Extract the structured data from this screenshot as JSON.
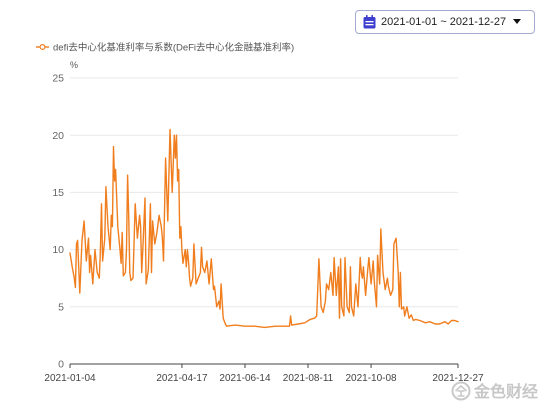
{
  "date_range": {
    "value": "2021-01-01 ~ 2021-12-27",
    "icon": "calendar-icon",
    "dropdown_icon": "caret-down-icon"
  },
  "watermark": {
    "text": "金色财经"
  },
  "colors": {
    "calendar_icon": "#3f3fcf",
    "picker_border": "#a4abd0"
  },
  "chart_data": {
    "type": "line",
    "ylabel": "%",
    "ylim": [
      0,
      25
    ],
    "y_ticks": [
      0,
      5,
      10,
      15,
      20,
      25
    ],
    "xlim": [
      "2021-01-04",
      "2021-12-27"
    ],
    "x_ticks": [
      "2021-01-04",
      "2021-04-17",
      "2021-06-14",
      "2021-08-11",
      "2021-10-08",
      "2021-12-27"
    ],
    "grid": true,
    "legend_position": "top-left",
    "x": [
      "2021-01-04",
      "2021-01-06",
      "2021-01-08",
      "2021-01-09",
      "2021-01-10",
      "2021-01-11",
      "2021-01-13",
      "2021-01-15",
      "2021-01-17",
      "2021-01-19",
      "2021-01-21",
      "2021-01-22",
      "2021-01-23",
      "2021-01-25",
      "2021-01-27",
      "2021-01-29",
      "2021-01-31",
      "2021-02-01",
      "2021-02-02",
      "2021-02-03",
      "2021-02-05",
      "2021-02-06",
      "2021-02-08",
      "2021-02-10",
      "2021-02-11",
      "2021-02-12",
      "2021-02-13",
      "2021-02-14",
      "2021-02-15",
      "2021-02-17",
      "2021-02-19",
      "2021-02-20",
      "2021-02-21",
      "2021-02-22",
      "2021-02-24",
      "2021-02-25",
      "2021-02-26",
      "2021-02-27",
      "2021-02-28",
      "2021-03-01",
      "2021-03-03",
      "2021-03-05",
      "2021-03-07",
      "2021-03-09",
      "2021-03-10",
      "2021-03-11",
      "2021-03-12",
      "2021-03-14",
      "2021-03-15",
      "2021-03-17",
      "2021-03-19",
      "2021-03-20",
      "2021-03-21",
      "2021-03-23",
      "2021-03-25",
      "2021-03-27",
      "2021-03-29",
      "2021-03-30",
      "2021-03-31",
      "2021-04-02",
      "2021-04-04",
      "2021-04-06",
      "2021-04-08",
      "2021-04-10",
      "2021-04-11",
      "2021-04-12",
      "2021-04-13",
      "2021-04-14",
      "2021-04-15",
      "2021-04-16",
      "2021-04-17",
      "2021-04-18",
      "2021-04-20",
      "2021-04-21",
      "2021-04-22",
      "2021-04-23",
      "2021-04-24",
      "2021-04-25",
      "2021-04-27",
      "2021-04-28",
      "2021-04-30",
      "2021-05-02",
      "2021-05-04",
      "2021-05-05",
      "2021-05-06",
      "2021-05-08",
      "2021-05-10",
      "2021-05-12",
      "2021-05-14",
      "2021-05-16",
      "2021-05-17",
      "2021-05-19",
      "2021-05-21",
      "2021-05-22",
      "2021-05-23",
      "2021-05-25",
      "2021-05-27",
      "2021-05-28",
      "2021-06-05",
      "2021-06-14",
      "2021-06-23",
      "2021-07-02",
      "2021-07-12",
      "2021-07-21",
      "2021-07-25",
      "2021-07-26",
      "2021-07-27",
      "2021-08-02",
      "2021-08-08",
      "2021-08-13",
      "2021-08-17",
      "2021-08-19",
      "2021-08-21",
      "2021-08-23",
      "2021-08-25",
      "2021-08-27",
      "2021-08-28",
      "2021-08-30",
      "2021-09-01",
      "2021-09-03",
      "2021-09-04",
      "2021-09-06",
      "2021-09-08",
      "2021-09-09",
      "2021-09-10",
      "2021-09-11",
      "2021-09-13",
      "2021-09-14",
      "2021-09-16",
      "2021-09-18",
      "2021-09-19",
      "2021-09-20",
      "2021-09-22",
      "2021-09-24",
      "2021-09-26",
      "2021-09-28",
      "2021-09-29",
      "2021-09-30",
      "2021-10-01",
      "2021-10-03",
      "2021-10-05",
      "2021-10-06",
      "2021-10-08",
      "2021-10-10",
      "2021-10-11",
      "2021-10-13",
      "2021-10-14",
      "2021-10-16",
      "2021-10-17",
      "2021-10-19",
      "2021-10-21",
      "2021-10-23",
      "2021-10-24",
      "2021-10-26",
      "2021-10-28",
      "2021-10-29",
      "2021-10-31",
      "2021-11-02",
      "2021-11-03",
      "2021-11-04",
      "2021-11-05",
      "2021-11-07",
      "2021-11-08",
      "2021-11-10",
      "2021-11-12",
      "2021-11-14",
      "2021-11-16",
      "2021-11-18",
      "2021-11-22",
      "2021-11-27",
      "2021-12-01",
      "2021-12-06",
      "2021-12-10",
      "2021-12-15",
      "2021-12-18",
      "2021-12-21",
      "2021-12-24",
      "2021-12-27"
    ],
    "series": [
      {
        "name": "defi去中心化基准利率与系数(DeFi去中心化金融基准利率)",
        "color": "#f07e1e",
        "values": [
          9.7,
          8.5,
          7.5,
          6.7,
          10.5,
          10.8,
          6.2,
          10.8,
          12.5,
          9.0,
          11.0,
          8.0,
          9.5,
          7.0,
          10.0,
          8.0,
          7.5,
          10.0,
          14.0,
          9.0,
          11.0,
          15.5,
          12.0,
          10.0,
          13.0,
          12.0,
          19.0,
          16.0,
          17.0,
          12.0,
          10.0,
          8.8,
          11.5,
          7.7,
          8.0,
          10.0,
          16.5,
          13.0,
          8.0,
          7.3,
          7.5,
          14.0,
          11.0,
          13.0,
          12.0,
          8.0,
          10.0,
          14.5,
          7.0,
          8.2,
          14.0,
          8.0,
          12.5,
          10.5,
          11.5,
          13.0,
          12.0,
          11.0,
          9.0,
          18.0,
          12.5,
          20.5,
          15.0,
          20.0,
          18.0,
          20.0,
          16.0,
          17.0,
          11.0,
          12.0,
          10.0,
          8.8,
          10.0,
          8.5,
          10.0,
          9.0,
          7.5,
          6.8,
          7.5,
          10.5,
          7.0,
          7.5,
          8.0,
          10.2,
          8.5,
          8.0,
          9.0,
          7.0,
          9.2,
          6.5,
          6.8,
          5.0,
          5.5,
          4.8,
          7.0,
          4.0,
          3.5,
          3.3,
          3.4,
          3.3,
          3.3,
          3.2,
          3.3,
          3.3,
          3.3,
          4.2,
          3.4,
          3.5,
          3.6,
          3.9,
          4.0,
          4.2,
          9.2,
          5.0,
          4.5,
          5.5,
          7.0,
          6.5,
          8.0,
          6.0,
          9.3,
          6.0,
          8.5,
          4.0,
          9.2,
          5.0,
          4.2,
          9.3,
          5.0,
          4.5,
          8.5,
          5.0,
          4.2,
          7.0,
          5.0,
          9.3,
          8.0,
          7.5,
          8.5,
          6.0,
          8.3,
          9.3,
          7.0,
          9.0,
          7.2,
          5.0,
          9.5,
          7.0,
          11.8,
          8.0,
          6.5,
          7.5,
          6.8,
          6.0,
          6.5,
          10.5,
          11.0,
          8.0,
          5.0,
          8.0,
          4.8,
          5.0,
          4.2,
          5.0,
          4.0,
          4.3,
          3.8,
          3.9,
          3.8,
          3.6,
          3.7,
          3.5,
          3.5,
          3.7,
          3.5,
          3.8,
          3.8,
          3.7
        ]
      }
    ]
  }
}
